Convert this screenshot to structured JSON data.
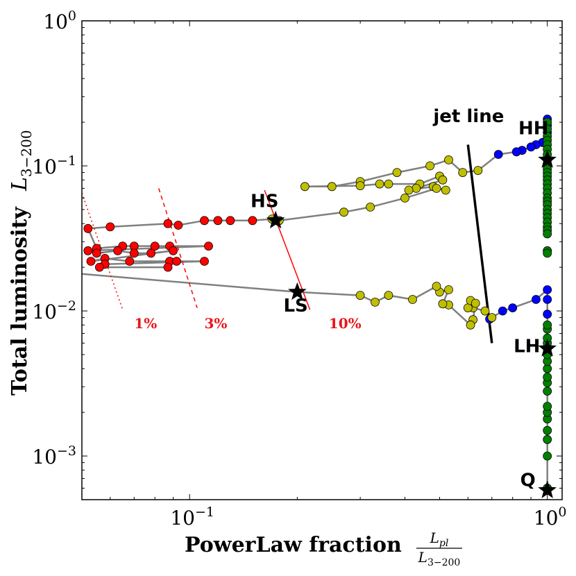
{
  "chart_data": {
    "type": "scatter",
    "title": "",
    "xlabel": "PowerLaw fraction",
    "xlabel_math": {
      "num": "L",
      "num_sub": "pl",
      "den": "L",
      "den_sub": "3−200"
    },
    "ylabel": "Total luminosity",
    "ylabel_math": {
      "base": "L",
      "sub": "3−200"
    },
    "xscale": "log",
    "yscale": "log",
    "xlim": [
      0.05,
      1.1
    ],
    "ylim": [
      0.0005,
      1.0
    ],
    "xticks": [
      {
        "value": 0.1,
        "base": "10",
        "exp": "−1"
      },
      {
        "value": 1.0,
        "base": "10",
        "exp": "0"
      }
    ],
    "yticks": [
      {
        "value": 1.0,
        "base": "10",
        "exp": "0"
      },
      {
        "value": 0.1,
        "base": "10",
        "exp": "−1"
      },
      {
        "value": 0.01,
        "base": "10",
        "exp": "−2"
      },
      {
        "value": 0.001,
        "base": "10",
        "exp": "−3"
      }
    ],
    "grid": false,
    "colors": {
      "red": "#ff0000",
      "yellow": "#bfbf00",
      "blue": "#0000ff",
      "green": "#008000",
      "track": "#808080",
      "ref_line": "#ff0000"
    },
    "track_upper": [
      {
        "x": 1.0,
        "y": 0.21,
        "c": "blue"
      },
      {
        "x": 1.0,
        "y": 0.19,
        "c": "blue"
      },
      {
        "x": 1.0,
        "y": 0.17,
        "c": "blue"
      },
      {
        "x": 0.97,
        "y": 0.145,
        "c": "blue"
      },
      {
        "x": 0.93,
        "y": 0.14,
        "c": "blue"
      },
      {
        "x": 0.9,
        "y": 0.135,
        "c": "blue"
      },
      {
        "x": 0.85,
        "y": 0.128,
        "c": "blue"
      },
      {
        "x": 0.82,
        "y": 0.125,
        "c": "blue"
      },
      {
        "x": 0.73,
        "y": 0.12,
        "c": "blue"
      },
      {
        "x": 0.64,
        "y": 0.093,
        "c": "yellow"
      },
      {
        "x": 0.58,
        "y": 0.09,
        "c": "yellow"
      },
      {
        "x": 0.53,
        "y": 0.11,
        "c": "yellow"
      },
      {
        "x": 0.47,
        "y": 0.1,
        "c": "yellow"
      },
      {
        "x": 0.38,
        "y": 0.09,
        "c": "yellow"
      },
      {
        "x": 0.3,
        "y": 0.078,
        "c": "yellow"
      },
      {
        "x": 0.25,
        "y": 0.072,
        "c": "yellow"
      },
      {
        "x": 0.21,
        "y": 0.072,
        "c": "yellow"
      },
      {
        "x": 0.3,
        "y": 0.073,
        "c": "yellow"
      },
      {
        "x": 0.34,
        "y": 0.075,
        "c": "yellow"
      },
      {
        "x": 0.36,
        "y": 0.075,
        "c": "yellow"
      },
      {
        "x": 0.44,
        "y": 0.075,
        "c": "yellow"
      },
      {
        "x": 0.5,
        "y": 0.085,
        "c": "yellow"
      },
      {
        "x": 0.51,
        "y": 0.08,
        "c": "yellow"
      },
      {
        "x": 0.43,
        "y": 0.07,
        "c": "yellow"
      },
      {
        "x": 0.41,
        "y": 0.068,
        "c": "yellow"
      },
      {
        "x": 0.48,
        "y": 0.072,
        "c": "yellow"
      },
      {
        "x": 0.52,
        "y": 0.068,
        "c": "yellow"
      },
      {
        "x": 0.49,
        "y": 0.07,
        "c": "yellow"
      },
      {
        "x": 0.4,
        "y": 0.06,
        "c": "yellow"
      },
      {
        "x": 0.32,
        "y": 0.052,
        "c": "yellow"
      },
      {
        "x": 0.27,
        "y": 0.048,
        "c": "yellow"
      },
      {
        "x": 0.178,
        "y": 0.042,
        "c": "yellow"
      },
      {
        "x": 0.17,
        "y": 0.043,
        "c": "yellow"
      },
      {
        "x": 0.15,
        "y": 0.042,
        "c": "red"
      },
      {
        "x": 0.13,
        "y": 0.042,
        "c": "red"
      },
      {
        "x": 0.12,
        "y": 0.042,
        "c": "red"
      },
      {
        "x": 0.11,
        "y": 0.042,
        "c": "red"
      },
      {
        "x": 0.093,
        "y": 0.039,
        "c": "red"
      },
      {
        "x": 0.087,
        "y": 0.04,
        "c": "red"
      },
      {
        "x": 0.06,
        "y": 0.038,
        "c": "red"
      },
      {
        "x": 0.052,
        "y": 0.037,
        "c": "red"
      },
      {
        "x": 0.055,
        "y": 0.027,
        "c": "red"
      },
      {
        "x": 0.065,
        "y": 0.028,
        "c": "red"
      },
      {
        "x": 0.07,
        "y": 0.028,
        "c": "red"
      },
      {
        "x": 0.08,
        "y": 0.028,
        "c": "red"
      },
      {
        "x": 0.088,
        "y": 0.028,
        "c": "red"
      },
      {
        "x": 0.113,
        "y": 0.028,
        "c": "red"
      },
      {
        "x": 0.052,
        "y": 0.026,
        "c": "red"
      },
      {
        "x": 0.055,
        "y": 0.025,
        "c": "red"
      },
      {
        "x": 0.063,
        "y": 0.026,
        "c": "red"
      },
      {
        "x": 0.07,
        "y": 0.025,
        "c": "red"
      },
      {
        "x": 0.078,
        "y": 0.025,
        "c": "red"
      },
      {
        "x": 0.09,
        "y": 0.026,
        "c": "red"
      },
      {
        "x": 0.053,
        "y": 0.022,
        "c": "red"
      },
      {
        "x": 0.058,
        "y": 0.023,
        "c": "red"
      },
      {
        "x": 0.068,
        "y": 0.022,
        "c": "red"
      },
      {
        "x": 0.088,
        "y": 0.022,
        "c": "red"
      },
      {
        "x": 0.092,
        "y": 0.022,
        "c": "red"
      },
      {
        "x": 0.11,
        "y": 0.022,
        "c": "red"
      },
      {
        "x": 0.058,
        "y": 0.021,
        "c": "red"
      },
      {
        "x": 0.056,
        "y": 0.02,
        "c": "red"
      },
      {
        "x": 0.087,
        "y": 0.02,
        "c": "red"
      }
    ],
    "track_lower": [
      {
        "x": 1.0,
        "y": 0.0006,
        "c": "green"
      },
      {
        "x": 1.0,
        "y": 0.001,
        "c": "green"
      },
      {
        "x": 1.0,
        "y": 0.0013,
        "c": "green"
      },
      {
        "x": 1.0,
        "y": 0.0015,
        "c": "green"
      },
      {
        "x": 1.0,
        "y": 0.0018,
        "c": "green"
      },
      {
        "x": 1.0,
        "y": 0.002,
        "c": "green"
      },
      {
        "x": 1.0,
        "y": 0.0022,
        "c": "green"
      },
      {
        "x": 1.0,
        "y": 0.0028,
        "c": "green"
      },
      {
        "x": 1.0,
        "y": 0.0032,
        "c": "green"
      },
      {
        "x": 1.0,
        "y": 0.0035,
        "c": "green"
      },
      {
        "x": 1.0,
        "y": 0.004,
        "c": "green"
      },
      {
        "x": 1.0,
        "y": 0.0045,
        "c": "green"
      },
      {
        "x": 1.0,
        "y": 0.005,
        "c": "green"
      },
      {
        "x": 1.0,
        "y": 0.0055,
        "c": "green"
      },
      {
        "x": 1.0,
        "y": 0.006,
        "c": "green"
      },
      {
        "x": 1.0,
        "y": 0.0065,
        "c": "green"
      },
      {
        "x": 1.0,
        "y": 0.0075,
        "c": "green"
      },
      {
        "x": 1.0,
        "y": 0.008,
        "c": "green"
      },
      {
        "x": 1.0,
        "y": 0.0095,
        "c": "blue"
      },
      {
        "x": 1.0,
        "y": 0.012,
        "c": "blue"
      },
      {
        "x": 1.0,
        "y": 0.014,
        "c": "blue"
      },
      {
        "x": 0.93,
        "y": 0.012,
        "c": "blue"
      },
      {
        "x": 0.8,
        "y": 0.0105,
        "c": "blue"
      },
      {
        "x": 0.75,
        "y": 0.01,
        "c": "blue"
      },
      {
        "x": 0.69,
        "y": 0.0088,
        "c": "blue"
      },
      {
        "x": 0.7,
        "y": 0.009,
        "c": "yellow"
      },
      {
        "x": 0.67,
        "y": 0.01,
        "c": "yellow"
      },
      {
        "x": 0.62,
        "y": 0.0105,
        "c": "yellow"
      },
      {
        "x": 0.6,
        "y": 0.0105,
        "c": "yellow"
      },
      {
        "x": 0.61,
        "y": 0.0118,
        "c": "yellow"
      },
      {
        "x": 0.63,
        "y": 0.0113,
        "c": "yellow"
      },
      {
        "x": 0.62,
        "y": 0.0087,
        "c": "yellow"
      },
      {
        "x": 0.61,
        "y": 0.008,
        "c": "yellow"
      },
      {
        "x": 0.53,
        "y": 0.011,
        "c": "yellow"
      },
      {
        "x": 0.51,
        "y": 0.0112,
        "c": "yellow"
      },
      {
        "x": 0.53,
        "y": 0.014,
        "c": "yellow"
      },
      {
        "x": 0.5,
        "y": 0.0135,
        "c": "yellow"
      },
      {
        "x": 0.49,
        "y": 0.0148,
        "c": "yellow"
      },
      {
        "x": 0.42,
        "y": 0.012,
        "c": "yellow"
      },
      {
        "x": 0.36,
        "y": 0.0128,
        "c": "yellow"
      },
      {
        "x": 0.33,
        "y": 0.0115,
        "c": "yellow"
      },
      {
        "x": 0.3,
        "y": 0.0128,
        "c": "yellow"
      },
      {
        "x": 0.2,
        "y": 0.0135,
        "c": "star"
      },
      {
        "x": 0.05,
        "y": 0.018,
        "c": "none"
      }
    ],
    "states": [
      {
        "label": "HH",
        "x": 1.0,
        "y": 0.11,
        "lx": 0.83,
        "ly": 0.165
      },
      {
        "label": "HS",
        "x": 0.174,
        "y": 0.042,
        "lx": 0.148,
        "ly": 0.052
      },
      {
        "label": "LS",
        "x": 0.2,
        "y": 0.0135,
        "lx": 0.183,
        "ly": 0.0099
      },
      {
        "label": "LH",
        "x": 1.0,
        "y": 0.0055,
        "lx": 0.805,
        "ly": 0.0052
      },
      {
        "label": "Q",
        "x": 1.0,
        "y": 0.00058,
        "lx": 0.84,
        "ly": 0.00062
      }
    ],
    "jet_line": {
      "label": "jet line",
      "x": [
        0.6,
        0.7
      ],
      "y": [
        0.14,
        0.006
      ],
      "label_x": 0.48,
      "label_y": 0.2
    },
    "fraction_lines": [
      {
        "label": "1%",
        "style": "dotted",
        "x": [
          0.05,
          0.065
        ],
        "y": [
          0.065,
          0.0102
        ],
        "label_x": 0.07,
        "label_y": 0.0076
      },
      {
        "label": "3%",
        "style": "dashed",
        "x": [
          0.082,
          0.105
        ],
        "y": [
          0.07,
          0.0105
        ],
        "label_x": 0.11,
        "label_y": 0.0076
      },
      {
        "label": "10%",
        "style": "solid",
        "x": [
          0.162,
          0.217
        ],
        "y": [
          0.068,
          0.0102
        ],
        "label_x": 0.245,
        "label_y": 0.0076
      }
    ],
    "legend": "none"
  }
}
